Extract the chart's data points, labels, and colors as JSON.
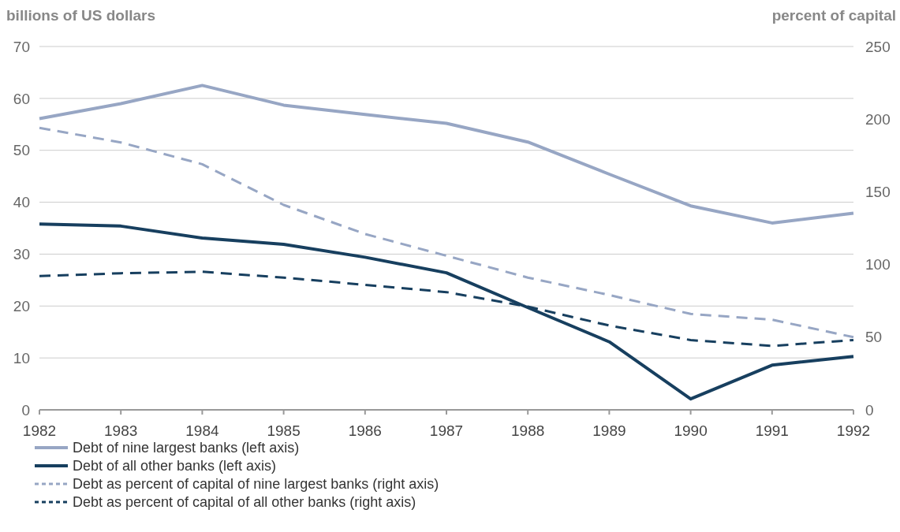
{
  "chart_data": {
    "type": "line",
    "ylabel": "billions of US dollars",
    "y2label": "percent of capital",
    "x": [
      1982,
      1983,
      1984,
      1985,
      1986,
      1987,
      1988,
      1989,
      1990,
      1991,
      1992
    ],
    "xlim": [
      1982,
      1992
    ],
    "xticks": [
      1982,
      1983,
      1984,
      1985,
      1986,
      1987,
      1988,
      1989,
      1990,
      1991,
      1992
    ],
    "ylim": [
      0,
      70
    ],
    "yticks": [
      0,
      10,
      20,
      30,
      40,
      50,
      60,
      70
    ],
    "y2lim": [
      0,
      250
    ],
    "y2ticks": [
      0,
      50,
      100,
      150,
      200,
      250
    ],
    "grid": "y",
    "legend": "bottom",
    "marker": "none",
    "series": [
      {
        "name": "Debt of nine largest banks (left axis)",
        "color": "#97a6c4",
        "line_style": "solid",
        "values": [
          56.1,
          59.0,
          62.5,
          58.7,
          56.9,
          55.2,
          51.6,
          45.4,
          39.3,
          36.0,
          37.9
        ]
      },
      {
        "name": "Debt of all other banks (left axis)",
        "color": "#173f5f",
        "line_style": "solid",
        "values": [
          35.8,
          35.4,
          33.1,
          31.9,
          29.4,
          26.4,
          19.7,
          13.1,
          2.1,
          8.6,
          10.3
        ]
      },
      {
        "name": "Debt as percent of capital of nine largest banks (right axis)",
        "color": "#97a6c4",
        "line_style": "dashed",
        "axis": "y2",
        "values": [
          194,
          184,
          169,
          141,
          121,
          106,
          91,
          79,
          66,
          62,
          50
        ]
      },
      {
        "name": "Debt as percent of capital of all other banks (right axis)",
        "color": "#173f5f",
        "line_style": "dashed",
        "axis": "y2",
        "values": [
          92,
          94,
          95,
          91,
          86,
          81,
          71,
          58,
          48,
          44,
          48
        ]
      }
    ]
  }
}
